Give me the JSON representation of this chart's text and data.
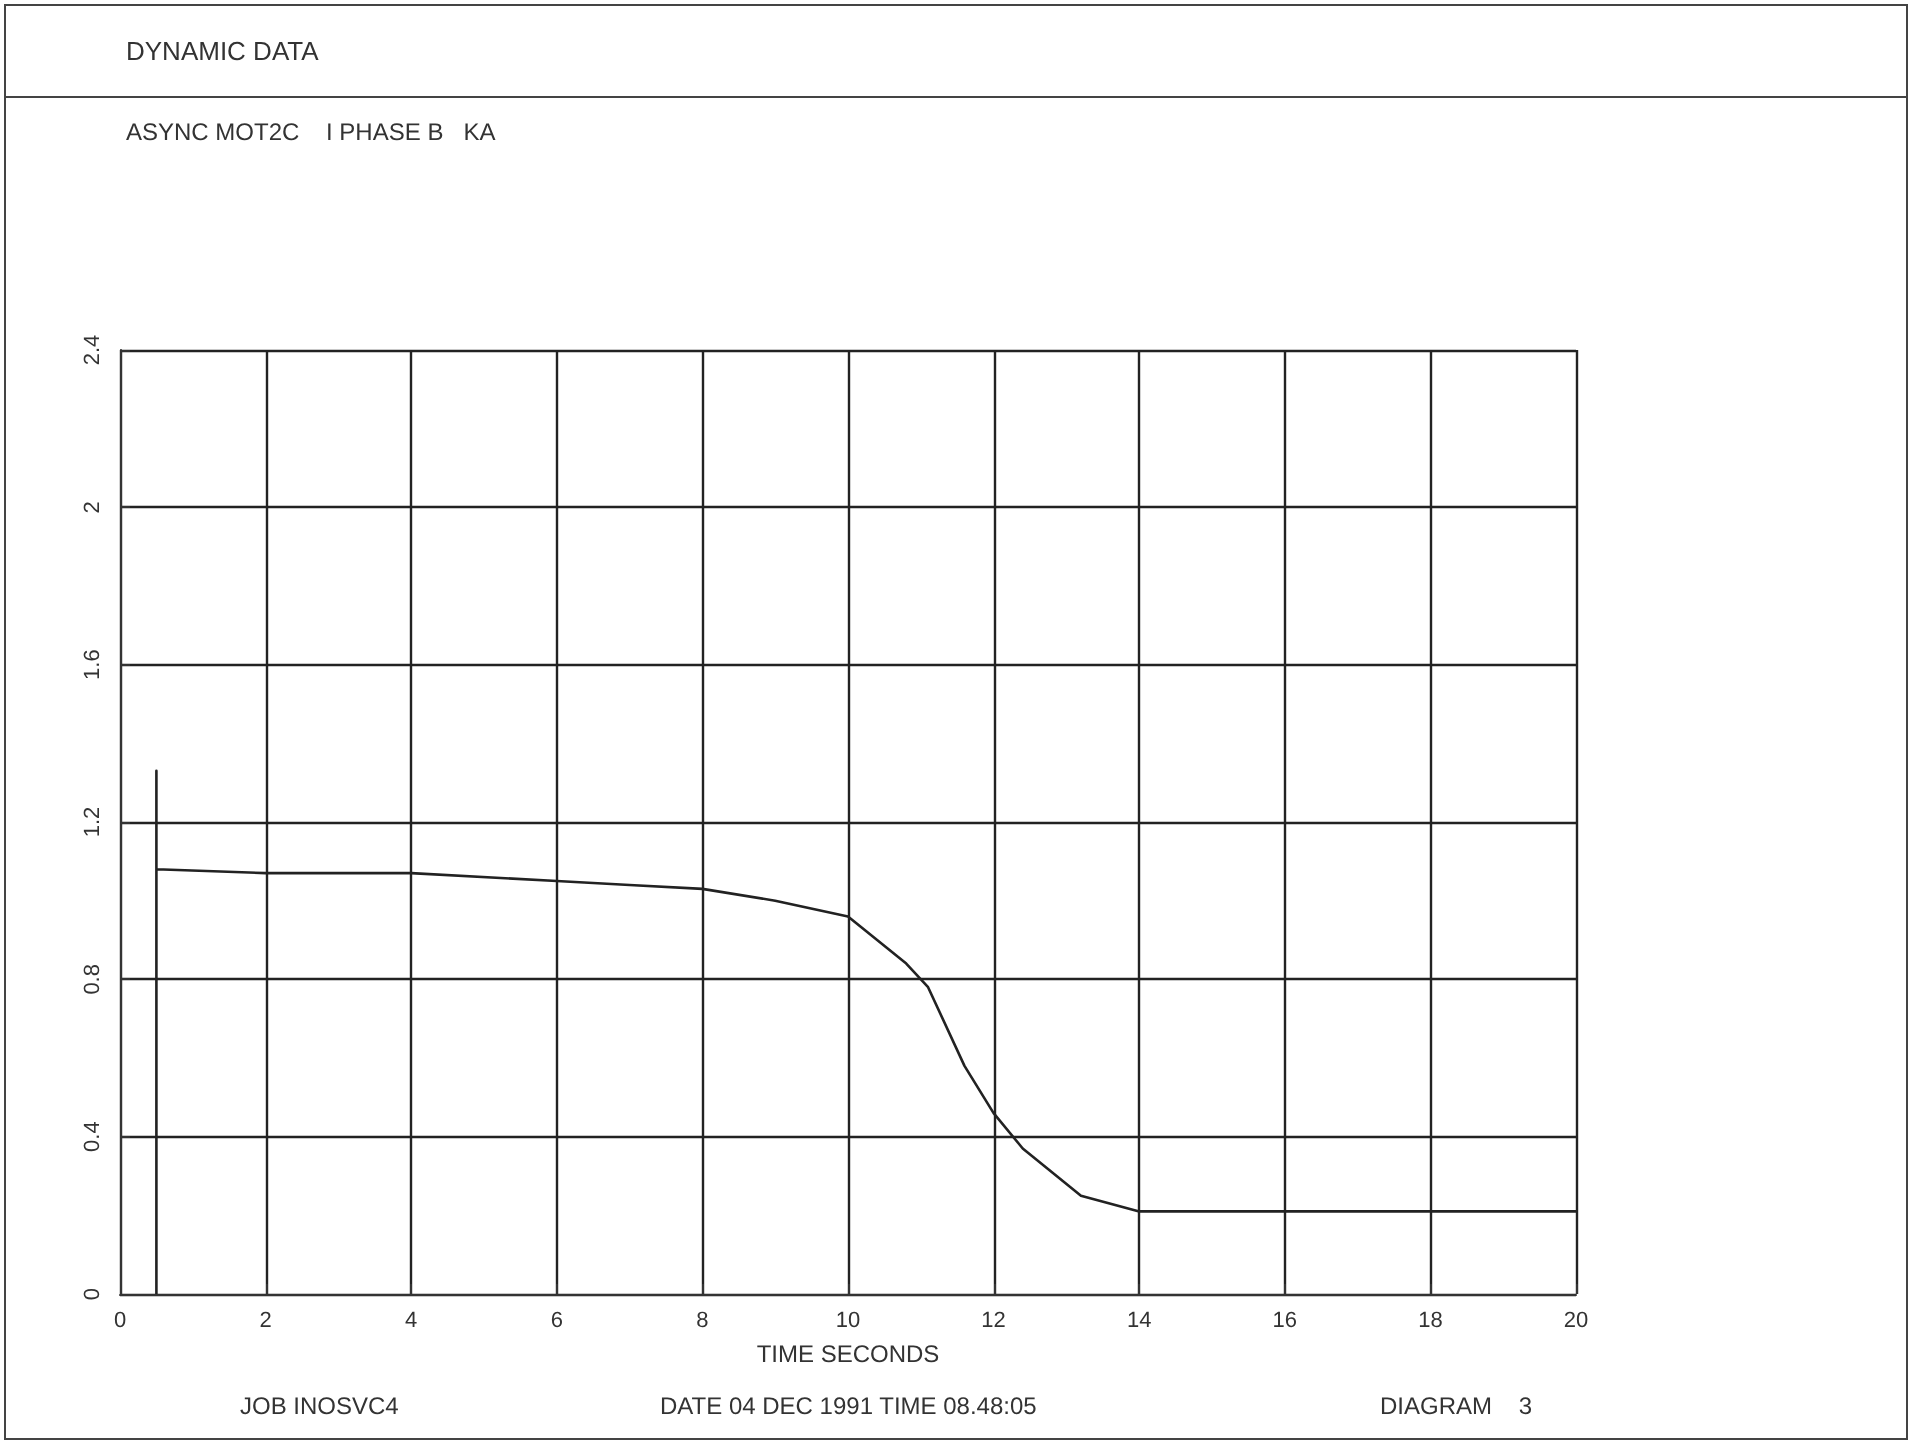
{
  "chart_data": {
    "type": "line",
    "title": "DYNAMIC DATA",
    "subtitle": "ASYNC MOT2C    I PHASE B   KA",
    "xlabel": "TIME SECONDS",
    "annotations": [
      "JOB INOSVC4",
      "DATE 04 DEC 1991 TIME 08.48:05",
      "DIAGRAM    3"
    ],
    "x": [
      0.5,
      0.5,
      0.5,
      2,
      4,
      6,
      7,
      8,
      9,
      10,
      10.8,
      11.1,
      11.6,
      12,
      12.4,
      13.2,
      14,
      16,
      18,
      20
    ],
    "series": [
      {
        "color": "#222222",
        "values": [
          0,
          1.33,
          1.08,
          1.07,
          1.07,
          1.05,
          1.04,
          1.03,
          1.0,
          0.96,
          0.84,
          0.78,
          0.58,
          0.46,
          0.37,
          0.25,
          0.21,
          0.21,
          0.21,
          0.21
        ]
      }
    ],
    "xlim": [
      0,
      20
    ],
    "xticks": [
      0,
      2,
      4,
      6,
      8,
      10,
      12,
      14,
      16,
      18,
      20
    ],
    "ylim": [
      0,
      2.4
    ],
    "yticks": [
      0,
      0.4,
      0.8,
      1.2,
      1.6,
      2,
      2.4
    ],
    "grid": true,
    "marker": "none",
    "line_style": "solid"
  }
}
